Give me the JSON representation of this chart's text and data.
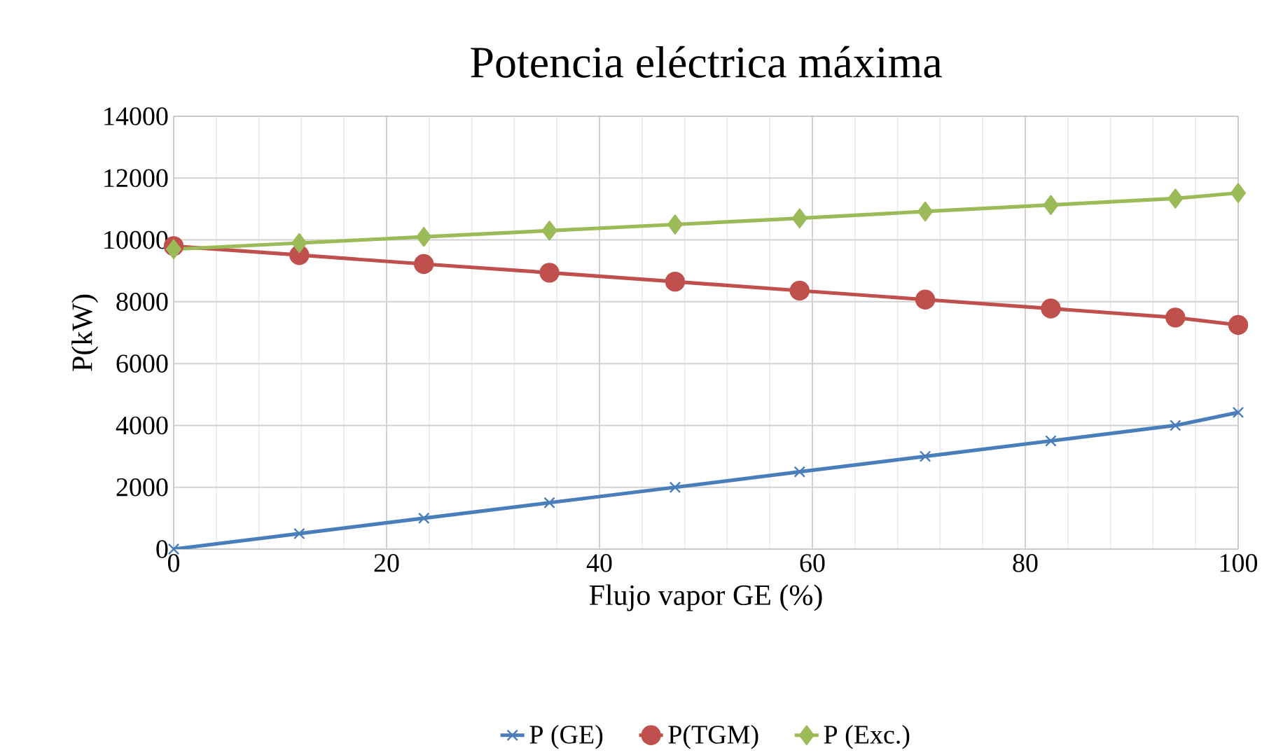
{
  "chart_data": {
    "type": "line",
    "title": "Potencia eléctrica máxima",
    "xlabel": "Flujo vapor GE (%)",
    "ylabel": "P(kW)",
    "x": [
      0,
      11.8,
      23.5,
      35.3,
      47.1,
      58.8,
      70.6,
      82.4,
      94.1,
      100
    ],
    "series": [
      {
        "name": "P (GE)",
        "color": "#4a7ebb",
        "marker": "cross",
        "values": [
          0,
          500,
          1000,
          1500,
          2000,
          2500,
          3000,
          3500,
          4000,
          4420
        ]
      },
      {
        "name": "P(TGM)",
        "color": "#c0504d",
        "marker": "circle",
        "values": [
          9800,
          9510,
          9220,
          8940,
          8650,
          8360,
          8070,
          7780,
          7490,
          7250
        ]
      },
      {
        "name": "P (Exc.)",
        "color": "#9bbb59",
        "marker": "diamond",
        "values": [
          9700,
          9900,
          10100,
          10300,
          10500,
          10700,
          10920,
          11130,
          11340,
          11520
        ]
      }
    ],
    "xlim": [
      0,
      100
    ],
    "xticks": [
      0,
      20,
      40,
      60,
      80,
      100
    ],
    "ylim": [
      0,
      14000
    ],
    "yticks": [
      0,
      2000,
      4000,
      6000,
      8000,
      10000,
      12000,
      14000
    ],
    "grid": true,
    "legend": "bottom",
    "line_style": "solid"
  }
}
